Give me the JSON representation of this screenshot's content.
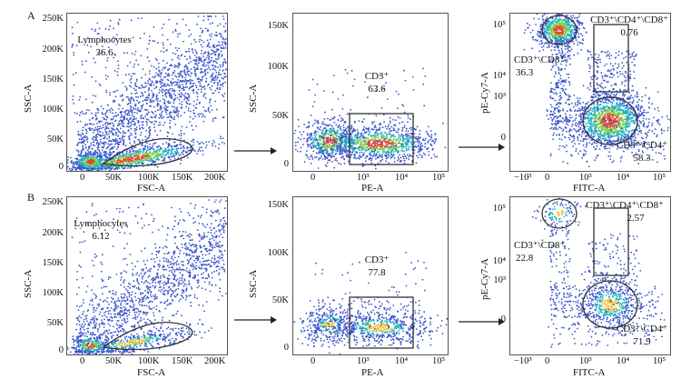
{
  "panels": [
    {
      "letter": "A",
      "scatter1": {
        "gate_name": "Lymphocytes",
        "gate_value": "36.6",
        "x_label": "FSC-A",
        "y_label": "SSC-A",
        "x_ticks": [
          "0",
          "50K",
          "100K",
          "150K",
          "200K"
        ],
        "y_ticks": [
          "250K",
          "200K",
          "150K",
          "100K",
          "50K",
          "0"
        ]
      },
      "scatter2": {
        "gate_name": "CD3⁺",
        "gate_value": "63.6",
        "x_label": "PE-A",
        "y_label": "SSC-A",
        "x_ticks": [
          "0",
          "10³",
          "10⁴",
          "10⁵"
        ],
        "y_ticks": [
          "150K",
          "100K",
          "50K",
          "0"
        ]
      },
      "scatter3": {
        "x_label": "FITC-A",
        "y_label": "pE-Cy7-A",
        "x_ticks": [
          "−10³",
          "0",
          "10³",
          "10⁴",
          "10⁵"
        ],
        "y_ticks": [
          "10⁵",
          "10⁴",
          "10³",
          "0"
        ],
        "gate_cd8_name": "CD3⁺\\CD8⁺",
        "gate_cd8_value": "36.3",
        "gate_dp_name": "CD3⁺\\CD4⁺\\CD8⁺",
        "gate_dp_value": "0.76",
        "gate_cd4_name": "CD3⁺\\CD4⁺",
        "gate_cd4_value": "58.3"
      }
    },
    {
      "letter": "B",
      "scatter1": {
        "gate_name": "Lymphocytes",
        "gate_value": "6.12",
        "x_label": "FSC-A",
        "y_label": "SSC-A",
        "x_ticks": [
          "0",
          "50K",
          "100K",
          "150K",
          "200K"
        ],
        "y_ticks": [
          "250K",
          "200K",
          "150K",
          "100K",
          "50K",
          "0"
        ]
      },
      "scatter2": {
        "gate_name": "CD3⁺",
        "gate_value": "77.8",
        "x_label": "PE-A",
        "y_label": "SSC-A",
        "x_ticks": [
          "0",
          "10³",
          "10⁴",
          "10⁵"
        ],
        "y_ticks": [
          "150K",
          "100K",
          "50K",
          "0"
        ]
      },
      "scatter3": {
        "x_label": "FITC-A",
        "y_label": "pE-Cy7-A",
        "x_ticks": [
          "−10³",
          "0",
          "10³",
          "10⁴",
          "10⁵"
        ],
        "y_ticks": [
          "10⁵",
          "10⁴",
          "10³",
          "0"
        ],
        "gate_cd8_name": "CD3⁺\\CD8⁺",
        "gate_cd8_value": "22.8",
        "gate_dp_name": "CD3⁺\\CD4⁺\\CD8⁺",
        "gate_dp_value": "2.57",
        "gate_cd4_name": "CD3⁺\\CD4⁺",
        "gate_cd4_value": "71.9"
      }
    }
  ],
  "colors": {
    "dot_sparse": "#3a55c8",
    "dot_mid": "#21b3c0",
    "dot_dense": "#7ed04b",
    "dot_hot": "#f2c230",
    "dot_core": "#e4462a",
    "gate": "#333333"
  }
}
